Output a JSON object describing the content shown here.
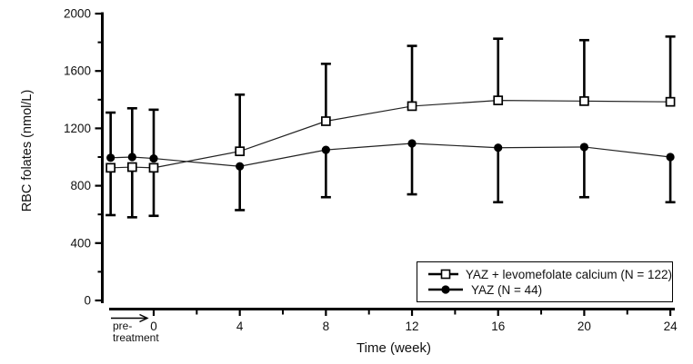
{
  "figure_title": "",
  "legend": {
    "entries": [
      {
        "label": "YAZ + levomefolate calcium (N = 122)",
        "marker": "open-square"
      },
      {
        "label": "YAZ (N = 44)",
        "marker": "filled-circle"
      }
    ],
    "position": "bottom-right"
  },
  "colors": {
    "axis": "#000000",
    "text": "#111111",
    "marker_fill_open": "#ffffff",
    "marker_fill_solid": "#000000",
    "background": "#ffffff"
  },
  "chart_data": {
    "type": "line",
    "title": "",
    "xlabel": "Time (week)",
    "ylabel": "RBC folates (nmol/L)",
    "pretreatment_label_line1": "pre-",
    "pretreatment_label_line2": "treatment",
    "grid": false,
    "legend_position": "bottom-right",
    "x_weeks": [
      -2,
      -1,
      0,
      4,
      8,
      12,
      16,
      20,
      24
    ],
    "x_axis": {
      "major_ticks": [
        0,
        4,
        8,
        12,
        16,
        20,
        24
      ],
      "minor_ticks": [
        2,
        6,
        10,
        14,
        18,
        22
      ],
      "range_weeks": [
        -2,
        24
      ]
    },
    "y_axis": {
      "major_ticks": [
        0,
        400,
        800,
        1200,
        1600,
        2000
      ],
      "minor_ticks": [
        200,
        600,
        1000,
        1400,
        1800
      ],
      "range": [
        0,
        2000
      ]
    },
    "series": [
      {
        "name": "YAZ + levomefolate calcium (N = 122)",
        "marker": "open-square",
        "values": [
          925,
          930,
          925,
          1040,
          1250,
          1355,
          1395,
          1390,
          1385
        ],
        "err_upper": [
          null,
          null,
          null,
          1435,
          1650,
          1775,
          1825,
          1815,
          1840
        ],
        "err_lower": [
          595,
          580,
          590,
          null,
          null,
          null,
          null,
          null,
          null
        ]
      },
      {
        "name": "YAZ (N = 44)",
        "marker": "filled-circle",
        "values": [
          995,
          1000,
          990,
          935,
          1050,
          1095,
          1065,
          1070,
          1000
        ],
        "err_upper": [
          1310,
          1340,
          1330,
          null,
          null,
          null,
          null,
          null,
          null
        ],
        "err_lower": [
          null,
          null,
          null,
          630,
          720,
          740,
          685,
          720,
          685
        ]
      }
    ]
  }
}
